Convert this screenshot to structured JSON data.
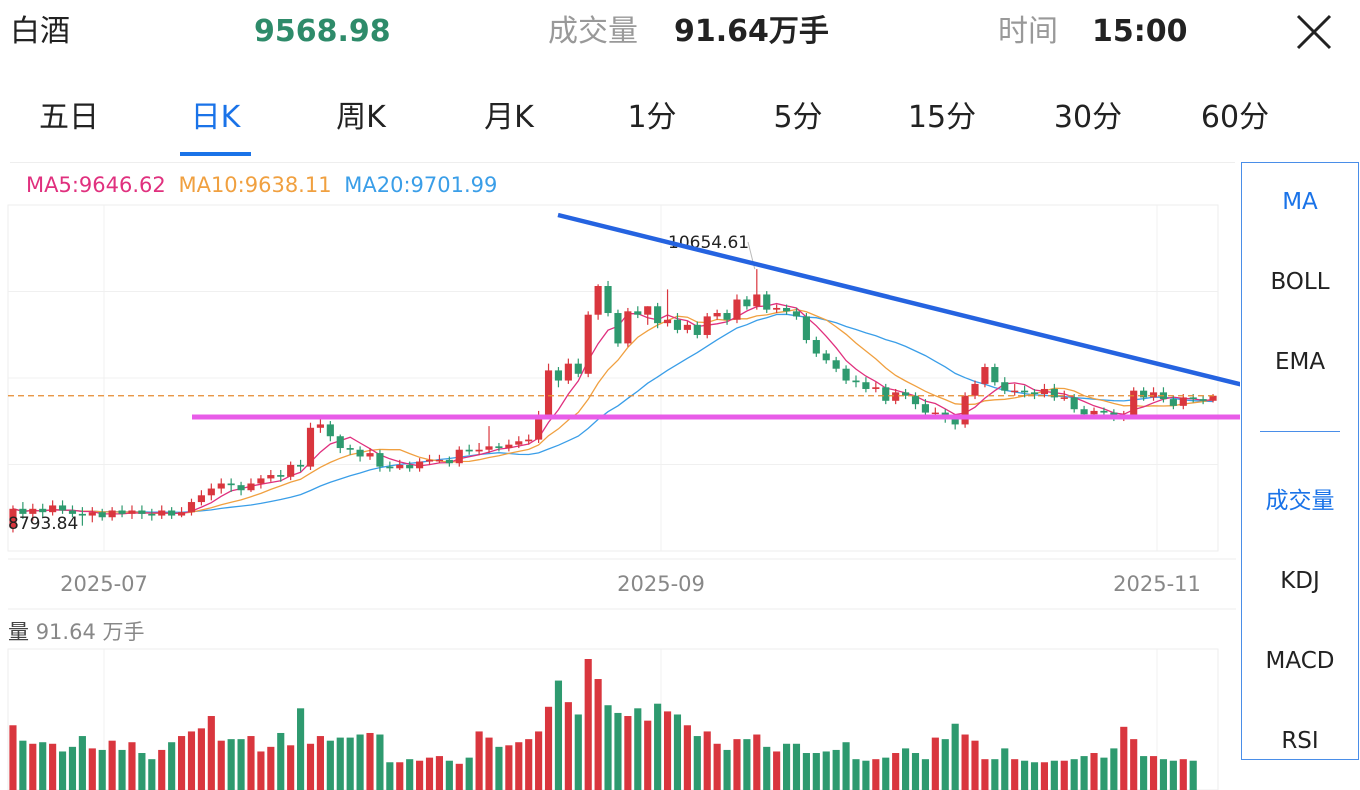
{
  "header": {
    "name": "白酒",
    "price": "9568.98",
    "volume_label": "成交量",
    "volume_value": "91.64万手",
    "time_label": "时间",
    "time_value": "15:00",
    "close_icon": "close-icon"
  },
  "tabs": [
    {
      "label": "五日",
      "active": false
    },
    {
      "label": "日K",
      "active": true
    },
    {
      "label": "周K",
      "active": false
    },
    {
      "label": "月K",
      "active": false
    },
    {
      "label": "1分",
      "active": false
    },
    {
      "label": "5分",
      "active": false
    },
    {
      "label": "15分",
      "active": false
    },
    {
      "label": "30分",
      "active": false
    },
    {
      "label": "60分",
      "active": false
    }
  ],
  "legend": {
    "ma5": "MA5:9646.62",
    "ma10": "MA10:9638.11",
    "ma20": "MA20:9701.99"
  },
  "colors": {
    "up": "#d9363e",
    "down": "#2e9a6f",
    "ma5": "#e0307e",
    "ma10": "#f0a040",
    "ma20": "#3a9ee8",
    "accent": "#1a73e8",
    "trendline": "#2563e0",
    "support_line": "#e85ce8",
    "ref_dash": "#e58a2e"
  },
  "indicators": {
    "main": [
      "MA",
      "BOLL",
      "EMA"
    ],
    "sub": [
      "成交量",
      "KDJ",
      "MACD",
      "RSI"
    ],
    "active_main": "MA",
    "active_sub": "成交量"
  },
  "volume_legend": {
    "label": "量",
    "value": "91.64 万手"
  },
  "chart_data": {
    "type": "candlestick",
    "x_ticks": [
      "2025-07",
      "2025-09",
      "2025-11"
    ],
    "max_label": "10654.61",
    "min_label": "8793.84",
    "overlays": {
      "descending_trendline": "blue",
      "horizontal_support": "magenta",
      "last_price_reference": "orange dashed"
    },
    "candles": [
      [
        8790,
        8900,
        8760,
        8920
      ],
      [
        8900,
        8870,
        8840,
        8940
      ],
      [
        8870,
        8900,
        8830,
        8930
      ],
      [
        8900,
        8880,
        8850,
        8930
      ],
      [
        8880,
        8920,
        8860,
        8950
      ],
      [
        8920,
        8890,
        8870,
        8950
      ],
      [
        8890,
        8870,
        8850,
        8920
      ],
      [
        8870,
        8860,
        8800,
        8910
      ],
      [
        8860,
        8880,
        8820,
        8910
      ],
      [
        8880,
        8850,
        8830,
        8900
      ],
      [
        8850,
        8890,
        8830,
        8910
      ],
      [
        8890,
        8870,
        8850,
        8920
      ],
      [
        8870,
        8890,
        8840,
        8920
      ],
      [
        8890,
        8870,
        8840,
        8920
      ],
      [
        8870,
        8860,
        8830,
        8900
      ],
      [
        8860,
        8890,
        8840,
        8920
      ],
      [
        8890,
        8860,
        8840,
        8910
      ],
      [
        8860,
        8880,
        8850,
        8910
      ],
      [
        8880,
        8940,
        8860,
        8960
      ],
      [
        8940,
        8980,
        8920,
        9010
      ],
      [
        8980,
        9020,
        8950,
        9050
      ],
      [
        9020,
        9050,
        8990,
        9080
      ],
      [
        9050,
        9040,
        9000,
        9080
      ],
      [
        9040,
        9010,
        8980,
        9060
      ],
      [
        9010,
        9050,
        9000,
        9080
      ],
      [
        9050,
        9080,
        9020,
        9100
      ],
      [
        9080,
        9100,
        9060,
        9130
      ],
      [
        9100,
        9090,
        9060,
        9130
      ],
      [
        9090,
        9160,
        9070,
        9180
      ],
      [
        9160,
        9150,
        9120,
        9190
      ],
      [
        9150,
        9380,
        9130,
        9410
      ],
      [
        9380,
        9400,
        9350,
        9430
      ],
      [
        9400,
        9330,
        9300,
        9420
      ],
      [
        9330,
        9260,
        9230,
        9340
      ],
      [
        9260,
        9250,
        9220,
        9280
      ],
      [
        9250,
        9210,
        9180,
        9270
      ],
      [
        9210,
        9230,
        9190,
        9260
      ],
      [
        9230,
        9150,
        9120,
        9250
      ],
      [
        9150,
        9140,
        9120,
        9180
      ],
      [
        9140,
        9160,
        9130,
        9190
      ],
      [
        9160,
        9140,
        9120,
        9180
      ],
      [
        9140,
        9180,
        9120,
        9200
      ],
      [
        9180,
        9190,
        9160,
        9220
      ],
      [
        9190,
        9190,
        9170,
        9220
      ],
      [
        9190,
        9170,
        9150,
        9210
      ],
      [
        9170,
        9250,
        9150,
        9270
      ],
      [
        9250,
        9240,
        9220,
        9280
      ],
      [
        9240,
        9250,
        9220,
        9290
      ],
      [
        9250,
        9270,
        9230,
        9390
      ],
      [
        9270,
        9260,
        9240,
        9290
      ],
      [
        9260,
        9280,
        9240,
        9310
      ],
      [
        9280,
        9300,
        9260,
        9330
      ],
      [
        9300,
        9310,
        9280,
        9340
      ],
      [
        9310,
        9450,
        9290,
        9480
      ],
      [
        9450,
        9720,
        9430,
        9760
      ],
      [
        9720,
        9660,
        9620,
        9740
      ],
      [
        9660,
        9760,
        9640,
        9790
      ],
      [
        9760,
        9700,
        9680,
        9790
      ],
      [
        9700,
        10050,
        9680,
        10070
      ],
      [
        10050,
        10220,
        10020,
        10230
      ],
      [
        10220,
        10060,
        10040,
        10250
      ],
      [
        10060,
        9880,
        9860,
        10080
      ],
      [
        9880,
        10070,
        9860,
        10090
      ],
      [
        10070,
        10050,
        10030,
        10100
      ],
      [
        10050,
        10100,
        9990,
        10100
      ],
      [
        10100,
        10000,
        9970,
        10120
      ],
      [
        10000,
        10020,
        9980,
        10200
      ],
      [
        10020,
        9960,
        9940,
        10060
      ],
      [
        9960,
        9990,
        9940,
        10010
      ],
      [
        9990,
        9930,
        9910,
        10010
      ],
      [
        9930,
        10040,
        9910,
        10060
      ],
      [
        10040,
        10060,
        10020,
        10080
      ],
      [
        10060,
        10020,
        9990,
        10080
      ],
      [
        10020,
        10140,
        10000,
        10170
      ],
      [
        10140,
        10100,
        10080,
        10160
      ],
      [
        10100,
        10170,
        10080,
        10320
      ],
      [
        10170,
        10080,
        10060,
        10190
      ],
      [
        10080,
        10090,
        10060,
        10110
      ],
      [
        10090,
        10070,
        10050,
        10110
      ],
      [
        10070,
        10040,
        10020,
        10090
      ],
      [
        10040,
        9900,
        9880,
        10060
      ],
      [
        9900,
        9820,
        9800,
        9920
      ],
      [
        9820,
        9780,
        9760,
        9840
      ],
      [
        9780,
        9730,
        9710,
        9800
      ],
      [
        9730,
        9660,
        9640,
        9750
      ],
      [
        9660,
        9650,
        9620,
        9690
      ],
      [
        9650,
        9610,
        9590,
        9680
      ],
      [
        9610,
        9620,
        9590,
        9650
      ],
      [
        9620,
        9540,
        9520,
        9640
      ],
      [
        9540,
        9590,
        9520,
        9610
      ],
      [
        9590,
        9570,
        9550,
        9610
      ],
      [
        9570,
        9520,
        9490,
        9590
      ],
      [
        9520,
        9470,
        9440,
        9550
      ],
      [
        9470,
        9470,
        9450,
        9500
      ],
      [
        9470,
        9430,
        9410,
        9490
      ],
      [
        9430,
        9400,
        9370,
        9450
      ],
      [
        9400,
        9570,
        9380,
        9590
      ],
      [
        9570,
        9640,
        9550,
        9660
      ],
      [
        9640,
        9740,
        9620,
        9760
      ],
      [
        9740,
        9650,
        9630,
        9760
      ],
      [
        9650,
        9600,
        9580,
        9680
      ],
      [
        9600,
        9600,
        9570,
        9640
      ],
      [
        9600,
        9590,
        9560,
        9630
      ],
      [
        9590,
        9580,
        9550,
        9610
      ],
      [
        9580,
        9610,
        9560,
        9640
      ],
      [
        9610,
        9560,
        9540,
        9640
      ],
      [
        9560,
        9560,
        9540,
        9600
      ],
      [
        9560,
        9490,
        9470,
        9580
      ],
      [
        9490,
        9460,
        9440,
        9510
      ],
      [
        9460,
        9480,
        9450,
        9500
      ],
      [
        9480,
        9470,
        9450,
        9500
      ],
      [
        9470,
        9440,
        9420,
        9490
      ],
      [
        9440,
        9450,
        9420,
        9480
      ],
      [
        9450,
        9600,
        9430,
        9620
      ],
      [
        9600,
        9560,
        9540,
        9620
      ],
      [
        9560,
        9590,
        9540,
        9620
      ],
      [
        9590,
        9550,
        9530,
        9620
      ],
      [
        9550,
        9510,
        9490,
        9570
      ],
      [
        9510,
        9560,
        9490,
        9580
      ],
      [
        9560,
        9550,
        9530,
        9580
      ],
      [
        9550,
        9540,
        9520,
        9570
      ],
      [
        9540,
        9570,
        9530,
        9580
      ]
    ],
    "volumes": [
      42,
      32,
      30,
      31,
      30,
      25,
      28,
      35,
      27,
      26,
      32,
      26,
      31,
      24,
      20,
      26,
      31,
      35,
      38,
      40,
      48,
      32,
      33,
      33,
      35,
      25,
      28,
      37,
      29,
      53,
      30,
      35,
      32,
      34,
      34,
      36,
      37,
      36,
      18,
      18,
      20,
      19,
      21,
      22,
      19,
      17,
      21,
      38,
      34,
      28,
      29,
      31,
      33,
      38,
      54,
      71,
      57,
      49,
      85,
      72,
      55,
      50,
      48,
      53,
      45,
      56,
      51,
      49,
      42,
      35,
      38,
      30,
      26,
      33,
      33,
      36,
      28,
      25,
      30,
      30,
      24,
      24,
      25,
      26,
      31,
      20,
      19,
      20,
      21,
      24,
      27,
      24,
      20,
      34,
      33,
      43,
      36,
      32,
      20,
      20,
      27,
      20,
      19,
      18,
      18,
      19,
      19,
      20,
      22,
      24,
      21,
      27,
      41,
      33,
      22,
      22,
      20,
      19,
      20,
      19
    ]
  }
}
